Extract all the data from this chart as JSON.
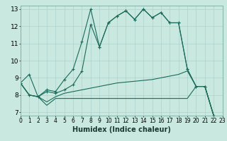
{
  "xlabel": "Humidex (Indice chaleur)",
  "bg_color": "#c8e8e0",
  "grid_color": "#a8ccc8",
  "line_color": "#1a6b5a",
  "xlim": [
    0,
    23
  ],
  "ylim": [
    6.8,
    13.2
  ],
  "xticks": [
    0,
    1,
    2,
    3,
    4,
    5,
    6,
    7,
    8,
    9,
    10,
    11,
    12,
    13,
    14,
    15,
    16,
    17,
    18,
    19,
    20,
    21,
    22,
    23
  ],
  "yticks": [
    7,
    8,
    9,
    10,
    11,
    12,
    13
  ],
  "line1": {
    "x": [
      0,
      1,
      2,
      3,
      4,
      5,
      6,
      7,
      8,
      9,
      10,
      11,
      12,
      13,
      14,
      15,
      16,
      17,
      18,
      19,
      20,
      21,
      22,
      23
    ],
    "y": [
      8.7,
      9.2,
      7.9,
      8.3,
      8.2,
      8.9,
      9.5,
      11.1,
      13.0,
      10.8,
      12.2,
      12.6,
      12.9,
      12.4,
      13.0,
      12.5,
      12.8,
      12.2,
      12.2,
      9.5,
      8.5,
      8.5,
      6.8,
      6.6
    ],
    "marker": true
  },
  "line2": {
    "x": [
      0,
      1,
      2,
      3,
      4,
      5,
      6,
      7,
      8,
      9,
      10,
      11,
      12,
      13,
      14,
      15,
      16,
      17,
      18,
      19,
      20,
      21,
      22,
      23
    ],
    "y": [
      8.7,
      8.0,
      7.9,
      8.2,
      8.1,
      8.3,
      8.6,
      9.4,
      12.1,
      10.8,
      12.2,
      12.6,
      12.9,
      12.4,
      13.0,
      12.5,
      12.8,
      12.2,
      12.2,
      9.5,
      8.5,
      8.5,
      6.8,
      6.6
    ],
    "marker": true
  },
  "line3": {
    "x": [
      0,
      1,
      2,
      3,
      4,
      5,
      6,
      7,
      8,
      9,
      10,
      11,
      12,
      13,
      14,
      15,
      16,
      17,
      18,
      19,
      20,
      21,
      22,
      23
    ],
    "y": [
      8.7,
      8.0,
      7.9,
      7.6,
      7.9,
      8.1,
      8.2,
      8.3,
      8.4,
      8.5,
      8.6,
      8.7,
      8.75,
      8.8,
      8.85,
      8.9,
      9.0,
      9.1,
      9.2,
      9.4,
      8.5,
      8.5,
      6.8,
      6.6
    ],
    "marker": false
  },
  "line4": {
    "x": [
      0,
      1,
      2,
      3,
      4,
      5,
      6,
      7,
      8,
      9,
      10,
      11,
      12,
      13,
      14,
      15,
      16,
      17,
      18,
      19,
      20,
      21,
      22,
      23
    ],
    "y": [
      8.7,
      8.0,
      7.9,
      7.4,
      7.8,
      7.8,
      7.8,
      7.8,
      7.8,
      7.8,
      7.8,
      7.8,
      7.8,
      7.8,
      7.8,
      7.8,
      7.8,
      7.8,
      7.8,
      7.8,
      8.5,
      8.5,
      6.8,
      6.6
    ],
    "marker": false
  },
  "tick_fontsize": 5.5,
  "label_fontsize": 6.5,
  "xlabel_fontsize": 7,
  "linewidth": 0.8,
  "marker_size": 3
}
